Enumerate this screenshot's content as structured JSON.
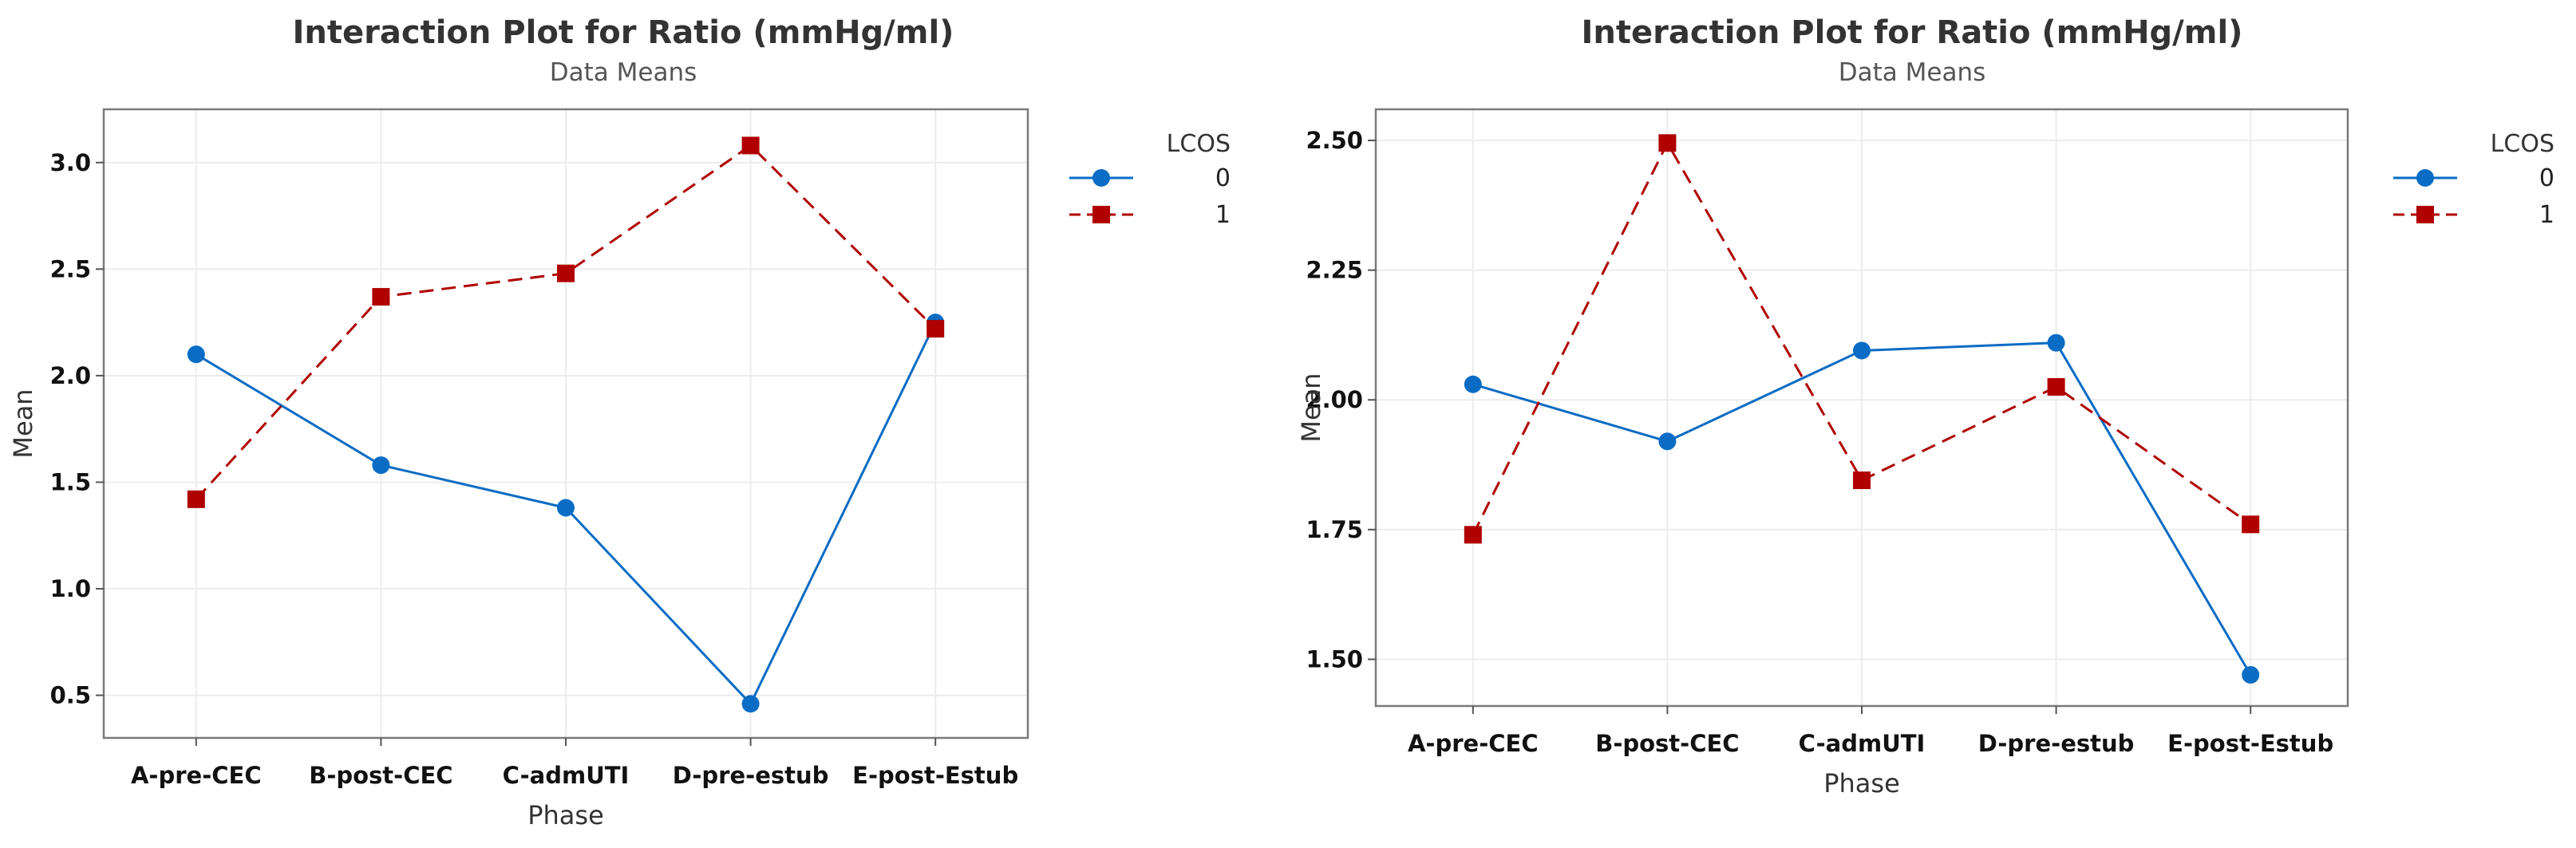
{
  "chart_data": [
    {
      "type": "line",
      "title": "Interaction Plot for Ratio (mmHg/ml)",
      "subtitle": "Data Means",
      "xlabel": "Phase",
      "ylabel": "Mean",
      "categories": [
        "A-pre-CEC",
        "B-post-CEC",
        "C-admUTI",
        "D-pre-estub",
        "E-post-Estub"
      ],
      "ylim": [
        0.3,
        3.25
      ],
      "yticks": [
        0.5,
        1.0,
        1.5,
        2.0,
        2.5,
        3.0
      ],
      "ytick_labels": [
        "0.5",
        "1.0",
        "1.5",
        "2.0",
        "2.5",
        "3.0"
      ],
      "grid": true,
      "legend_title": "LCOS",
      "legend_position": "right",
      "series": [
        {
          "name": "0",
          "color": "#0a6cc4",
          "marker": "circle",
          "style": "solid",
          "values": [
            2.1,
            1.58,
            1.38,
            0.46,
            2.25
          ]
        },
        {
          "name": "1",
          "color": "#b00000",
          "marker": "square",
          "style": "dashed",
          "values": [
            1.42,
            2.37,
            2.48,
            3.08,
            2.22
          ]
        }
      ]
    },
    {
      "type": "line",
      "title": "Interaction Plot for Ratio (mmHg/ml)",
      "subtitle": "Data Means",
      "xlabel": "Phase",
      "ylabel": "Mean",
      "categories": [
        "A-pre-CEC",
        "B-post-CEC",
        "C-admUTI",
        "D-pre-estub",
        "E-post-Estub"
      ],
      "ylim": [
        1.41,
        2.56
      ],
      "yticks": [
        1.5,
        1.75,
        2.0,
        2.25,
        2.5
      ],
      "ytick_labels": [
        "1.50",
        "1.75",
        "2.00",
        "2.25",
        "2.50"
      ],
      "grid": true,
      "legend_title": "LCOS",
      "legend_position": "right",
      "series": [
        {
          "name": "0",
          "color": "#0a6cc4",
          "marker": "circle",
          "style": "solid",
          "values": [
            2.03,
            1.92,
            2.095,
            2.11,
            1.47
          ]
        },
        {
          "name": "1",
          "color": "#b00000",
          "marker": "square",
          "style": "dashed",
          "values": [
            1.74,
            2.495,
            1.845,
            2.025,
            1.76
          ]
        }
      ]
    }
  ]
}
